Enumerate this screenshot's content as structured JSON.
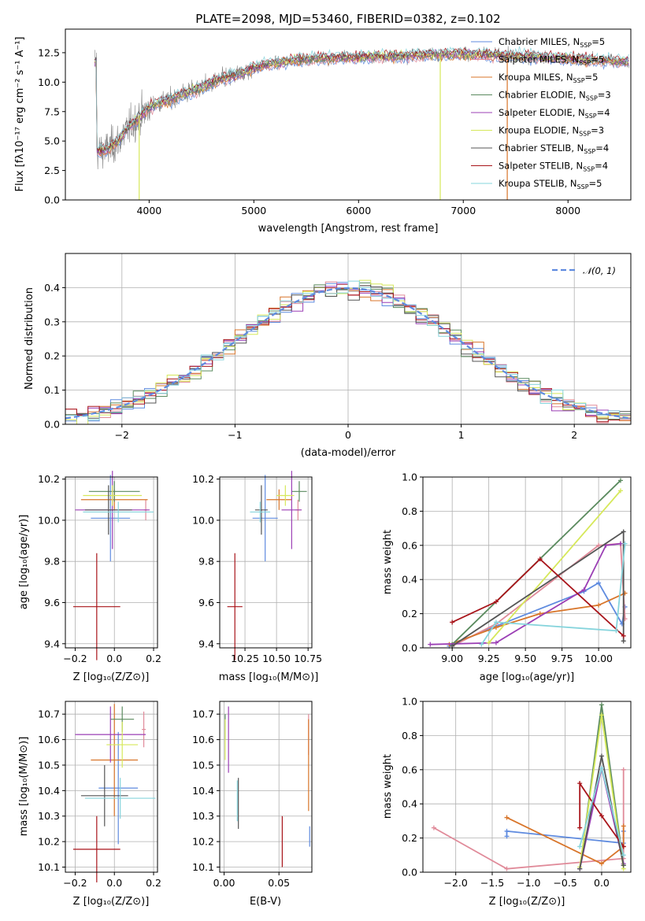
{
  "colors": {
    "Chabrier MILES": "#5f8bdf",
    "Salpeter MILES": "#e08a99",
    "Kroupa MILES": "#d8752a",
    "Chabrier ELODIE": "#5a8a5e",
    "Salpeter ELODIE": "#9b3fb5",
    "Kroupa ELODIE": "#d6e85a",
    "Chabrier STELIB": "#555555",
    "Salpeter STELIB": "#a8141a",
    "Kroupa STELIB": "#86d4dc"
  },
  "chart_data": [
    {
      "id": "spectrum",
      "type": "line",
      "title": "PLATE=2098, MJD=53460, FIBERID=0382, z=0.102",
      "xlabel": "wavelength [Angstrom, rest frame]",
      "ylabel": "Flux [fλ10⁻¹⁷ erg cm⁻² s⁻¹ A⁻¹]",
      "xlim": [
        3200,
        8600
      ],
      "ylim": [
        0,
        14.5
      ],
      "xticks": [
        "4000",
        "5000",
        "6000",
        "7000",
        "8000"
      ],
      "yticks": [
        "0.0",
        "2.5",
        "5.0",
        "7.5",
        "10.0",
        "12.5"
      ],
      "legend_position": "right",
      "legend": [
        {
          "text": "Chabrier MILES, N",
          "sub": "SSP",
          "tail": "=5",
          "series": "Chabrier MILES"
        },
        {
          "text": "Salpeter MILES, N",
          "sub": "SSP",
          "tail": "=5",
          "series": "Salpeter MILES"
        },
        {
          "text": "Kroupa MILES, N",
          "sub": "SSP",
          "tail": "=5",
          "series": "Kroupa MILES"
        },
        {
          "text": "Chabrier ELODIE, N",
          "sub": "SSP",
          "tail": "=3",
          "series": "Chabrier ELODIE"
        },
        {
          "text": "Salpeter ELODIE, N",
          "sub": "SSP",
          "tail": "=4",
          "series": "Salpeter ELODIE"
        },
        {
          "text": "Kroupa ELODIE, N",
          "sub": "SSP",
          "tail": "=3",
          "series": "Kroupa ELODIE"
        },
        {
          "text": "Chabrier STELIB, N",
          "sub": "SSP",
          "tail": "=4",
          "series": "Chabrier STELIB"
        },
        {
          "text": "Salpeter STELIB, N",
          "sub": "SSP",
          "tail": "=4",
          "series": "Salpeter STELIB"
        },
        {
          "text": "Kroupa STELIB, N",
          "sub": "SSP",
          "tail": "=5",
          "series": "Kroupa STELIB"
        }
      ],
      "data_series": {
        "name": "data",
        "color": "#808080"
      },
      "continuum": {
        "x": [
          3500,
          3600,
          3700,
          3800,
          3900,
          4000,
          4100,
          4200,
          4300,
          4400,
          4500,
          4600,
          4700,
          4800,
          4900,
          5000,
          5200,
          5400,
          5600,
          5800,
          6000,
          6200,
          6400,
          6600,
          6800,
          7000,
          7200,
          7400,
          7600,
          7800,
          8000,
          8200,
          8400,
          8600
        ],
        "y": [
          4.1,
          4.3,
          4.9,
          6.1,
          7.0,
          7.8,
          8.3,
          8.5,
          8.9,
          9.2,
          9.5,
          9.9,
          10.3,
          10.5,
          10.8,
          11.2,
          11.6,
          11.9,
          12.0,
          12.1,
          12.1,
          12.2,
          12.2,
          12.3,
          12.4,
          12.4,
          12.3,
          12.3,
          12.2,
          12.1,
          12.0,
          11.9,
          11.8,
          11.7
        ]
      },
      "dropouts": [
        {
          "series": "Kroupa ELODIE",
          "x": 3905
        },
        {
          "series": "Kroupa ELODIE",
          "x": 6780
        },
        {
          "series": "Kroupa MILES",
          "x": 7420
        }
      ]
    },
    {
      "id": "residuals",
      "type": "step",
      "xlabel": "(data-model)/error",
      "ylabel": "Normed distribution",
      "xlim": [
        -2.5,
        2.5
      ],
      "ylim": [
        0,
        0.5
      ],
      "xticks": [
        "−2",
        "−1",
        "0",
        "1",
        "2"
      ],
      "yticks": [
        "0.0",
        "0.1",
        "0.2",
        "0.3",
        "0.4"
      ],
      "legend_position": "top-right",
      "legend": [
        {
          "text": "𝒩(0, 1)",
          "color": "#5f8bdf",
          "dashed": true
        }
      ],
      "bin_width": 0.1
    },
    {
      "id": "age-vs-Z",
      "type": "errorbar",
      "xlabel": "Z [log₁₀(Z/Z⊙)]",
      "ylabel": "age  [log₁₀(age/yr)]",
      "xlim": [
        -0.25,
        0.22
      ],
      "ylim": [
        9.38,
        10.21
      ],
      "xticks": [
        "−0.2",
        "0.0",
        "0.2"
      ],
      "yticks": [
        "9.4",
        "9.6",
        "9.8",
        "10.0",
        "10.2"
      ],
      "points": [
        {
          "series": "Chabrier MILES",
          "x": -0.02,
          "y": 10.01,
          "xerr": 0.1,
          "yerr": 0.21
        },
        {
          "series": "Salpeter MILES",
          "x": 0.16,
          "y": 10.05,
          "xerr": 0.01,
          "yerr": 0.05
        },
        {
          "series": "Kroupa MILES",
          "x": 0.0,
          "y": 10.1,
          "xerr": 0.17,
          "yerr": 0.05
        },
        {
          "series": "Chabrier ELODIE",
          "x": 0.0,
          "y": 10.14,
          "xerr": 0.13,
          "yerr": 0.05
        },
        {
          "series": "Salpeter ELODIE",
          "x": -0.01,
          "y": 10.05,
          "xerr": 0.19,
          "yerr": 0.19
        },
        {
          "series": "Kroupa ELODIE",
          "x": -0.01,
          "y": 10.12,
          "xerr": 0.15,
          "yerr": 0.05
        },
        {
          "series": "Chabrier STELIB",
          "x": -0.03,
          "y": 10.05,
          "xerr": 0.12,
          "yerr": 0.12
        },
        {
          "series": "Salpeter STELIB",
          "x": -0.09,
          "y": 9.58,
          "xerr": 0.12,
          "yerr": 0.26
        },
        {
          "series": "Kroupa STELIB",
          "x": 0.02,
          "y": 10.04,
          "xerr": 0.18,
          "yerr": 0.05
        }
      ]
    },
    {
      "id": "age-vs-mass",
      "type": "errorbar",
      "xlabel": "mass [log₁₀(M/M⊙)]",
      "ylabel": "",
      "xlim": [
        10.05,
        10.78
      ],
      "ylim": [
        9.38,
        10.21
      ],
      "xticks": [
        "10.25",
        "10.50",
        "10.75"
      ],
      "yticks": [
        "9.4",
        "9.6",
        "9.8",
        "10.0",
        "10.2"
      ],
      "points": [
        {
          "series": "Chabrier MILES",
          "x": 10.41,
          "y": 10.01,
          "xerr": 0.1,
          "yerr": 0.21
        },
        {
          "series": "Salpeter MILES",
          "x": 10.67,
          "y": 10.05,
          "xerr": 0.02,
          "yerr": 0.05
        },
        {
          "series": "Kroupa MILES",
          "x": 10.52,
          "y": 10.1,
          "xerr": 0.1,
          "yerr": 0.05
        },
        {
          "series": "Chabrier ELODIE",
          "x": 10.68,
          "y": 10.14,
          "xerr": 0.06,
          "yerr": 0.05
        },
        {
          "series": "Salpeter ELODIE",
          "x": 10.62,
          "y": 10.05,
          "xerr": 0.08,
          "yerr": 0.19
        },
        {
          "series": "Kroupa ELODIE",
          "x": 10.57,
          "y": 10.12,
          "xerr": 0.07,
          "yerr": 0.05
        },
        {
          "series": "Chabrier STELIB",
          "x": 10.38,
          "y": 10.05,
          "xerr": 0.05,
          "yerr": 0.12
        },
        {
          "series": "Salpeter STELIB",
          "x": 10.17,
          "y": 9.58,
          "xerr": 0.06,
          "yerr": 0.26
        },
        {
          "series": "Kroupa STELIB",
          "x": 10.37,
          "y": 10.04,
          "xerr": 0.08,
          "yerr": 0.05
        }
      ]
    },
    {
      "id": "weight-vs-age",
      "type": "line",
      "xlabel": "age  [log₁₀(age/yr)]",
      "ylabel": "mass weight",
      "xlim": [
        8.8,
        10.22
      ],
      "ylim": [
        0,
        1.0
      ],
      "xticks": [
        "9.00",
        "9.25",
        "9.50",
        "9.75",
        "10.00"
      ],
      "yticks": [
        "0.0",
        "0.2",
        "0.4",
        "0.6",
        "0.8",
        "1.0"
      ],
      "series": [
        {
          "series": "Chabrier MILES",
          "x": [
            8.98,
            9.25,
            9.9,
            10.0,
            10.16,
            10.18
          ],
          "y": [
            0.01,
            0.11,
            0.33,
            0.38,
            0.14,
            0.24
          ]
        },
        {
          "series": "Salpeter MILES",
          "x": [
            9.0,
            9.3,
            10.0,
            10.15,
            10.18
          ],
          "y": [
            0.01,
            0.14,
            0.6,
            0.61,
            0.17
          ]
        },
        {
          "series": "Kroupa MILES",
          "x": [
            8.98,
            9.3,
            9.6,
            10.0,
            10.18
          ],
          "y": [
            0.02,
            0.12,
            0.2,
            0.25,
            0.32
          ]
        },
        {
          "series": "Chabrier ELODIE",
          "x": [
            9.0,
            10.15
          ],
          "y": [
            0.02,
            0.98
          ]
        },
        {
          "series": "Salpeter ELODIE",
          "x": [
            8.85,
            9.3,
            9.9,
            10.05,
            10.15
          ],
          "y": [
            0.02,
            0.03,
            0.34,
            0.6,
            0.61
          ]
        },
        {
          "series": "Kroupa ELODIE",
          "x": [
            9.25,
            10.15
          ],
          "y": [
            0.03,
            0.92
          ]
        },
        {
          "series": "Chabrier STELIB",
          "x": [
            9.0,
            10.17,
            10.17
          ],
          "y": [
            0.01,
            0.68,
            0.04
          ]
        },
        {
          "series": "Salpeter STELIB",
          "x": [
            9.0,
            9.3,
            9.6,
            10.17
          ],
          "y": [
            0.15,
            0.27,
            0.52,
            0.07
          ]
        },
        {
          "series": "Kroupa STELIB",
          "x": [
            9.2,
            9.3,
            10.12,
            10.18
          ],
          "y": [
            0.02,
            0.15,
            0.1,
            0.61
          ]
        }
      ]
    },
    {
      "id": "mass-vs-Z",
      "type": "errorbar",
      "xlabel": "Z [log₁₀(Z/Z⊙)]",
      "ylabel": "mass [log₁₀(M/M⊙)]",
      "xlim": [
        -0.25,
        0.22
      ],
      "ylim": [
        10.08,
        10.75
      ],
      "xticks": [
        "−0.2",
        "0.0",
        "0.2"
      ],
      "yticks": [
        "10.1",
        "10.2",
        "10.3",
        "10.4",
        "10.5",
        "10.6",
        "10.7"
      ],
      "points": [
        {
          "series": "Chabrier MILES",
          "x": 0.02,
          "y": 10.41,
          "xerr": 0.1,
          "yerr": 0.22
        },
        {
          "series": "Salpeter MILES",
          "x": 0.15,
          "y": 10.64,
          "xerr": 0.01,
          "yerr": 0.07
        },
        {
          "series": "Kroupa MILES",
          "x": 0.0,
          "y": 10.52,
          "xerr": 0.12,
          "yerr": 0.22
        },
        {
          "series": "Chabrier ELODIE",
          "x": 0.04,
          "y": 10.68,
          "xerr": 0.06,
          "yerr": 0.05
        },
        {
          "series": "Salpeter ELODIE",
          "x": -0.02,
          "y": 10.62,
          "xerr": 0.18,
          "yerr": 0.11
        },
        {
          "series": "Kroupa ELODIE",
          "x": 0.04,
          "y": 10.58,
          "xerr": 0.08,
          "yerr": 0.09
        },
        {
          "series": "Chabrier STELIB",
          "x": -0.05,
          "y": 10.38,
          "xerr": 0.12,
          "yerr": 0.12
        },
        {
          "series": "Salpeter STELIB",
          "x": -0.09,
          "y": 10.17,
          "xerr": 0.12,
          "yerr": 0.13
        },
        {
          "series": "Kroupa STELIB",
          "x": 0.03,
          "y": 10.37,
          "xerr": 0.18,
          "yerr": 0.08
        }
      ]
    },
    {
      "id": "mass-vs-EBV",
      "type": "errorbar",
      "xlabel": "E(B-V)",
      "ylabel": "",
      "xlim": [
        -0.004,
        0.08
      ],
      "ylim": [
        10.08,
        10.75
      ],
      "xticks": [
        "0.00",
        "0.05"
      ],
      "yticks": [
        "10.1",
        "10.2",
        "10.3",
        "10.4",
        "10.5",
        "10.6",
        "10.7"
      ],
      "points": [
        {
          "series": "Chabrier MILES",
          "x": 0.078,
          "y": 10.22,
          "xerr": 0,
          "yerr": 0.04
        },
        {
          "series": "Salpeter MILES",
          "x": 0.077,
          "y": 10.62,
          "xerr": 0,
          "yerr": 0.08
        },
        {
          "series": "Kroupa MILES",
          "x": 0.077,
          "y": 10.5,
          "xerr": 0,
          "yerr": 0.18
        },
        {
          "series": "Chabrier ELODIE",
          "x": 0.001,
          "y": 10.65,
          "xerr": 0,
          "yerr": 0.05
        },
        {
          "series": "Salpeter ELODIE",
          "x": 0.004,
          "y": 10.6,
          "xerr": 0,
          "yerr": 0.13
        },
        {
          "series": "Kroupa ELODIE",
          "x": 0.001,
          "y": 10.6,
          "xerr": 0,
          "yerr": 0.08
        },
        {
          "series": "Chabrier STELIB",
          "x": 0.013,
          "y": 10.35,
          "xerr": 0,
          "yerr": 0.1
        },
        {
          "series": "Salpeter STELIB",
          "x": 0.053,
          "y": 10.2,
          "xerr": 0,
          "yerr": 0.1
        },
        {
          "series": "Kroupa STELIB",
          "x": 0.012,
          "y": 10.36,
          "xerr": 0,
          "yerr": 0.08
        }
      ]
    },
    {
      "id": "weight-vs-Z",
      "type": "line",
      "xlabel": "Z [log₁₀(Z/Z⊙)]",
      "ylabel": "mass weight",
      "xlim": [
        -2.45,
        0.4
      ],
      "ylim": [
        0,
        1.0
      ],
      "xticks": [
        "−2.0",
        "−1.5",
        "−1.0",
        "−0.5",
        "0.0"
      ],
      "yticks": [
        "0.0",
        "0.2",
        "0.4",
        "0.6",
        "0.8",
        "1.0"
      ],
      "series": [
        {
          "series": "Chabrier MILES",
          "x": [
            -1.3,
            -1.3,
            0.3,
            0.3
          ],
          "y": [
            0.21,
            0.24,
            0.17,
            0.24
          ]
        },
        {
          "series": "Salpeter MILES",
          "x": [
            -2.3,
            -1.3,
            0.3,
            0.3
          ],
          "y": [
            0.26,
            0.02,
            0.08,
            0.6
          ]
        },
        {
          "series": "Kroupa MILES",
          "x": [
            -1.3,
            0.0,
            0.3,
            0.3
          ],
          "y": [
            0.32,
            0.05,
            0.15,
            0.27
          ]
        },
        {
          "series": "Chabrier ELODIE",
          "x": [
            -0.3,
            0.0,
            0.3
          ],
          "y": [
            0.02,
            0.98,
            0.04
          ]
        },
        {
          "series": "Salpeter ELODIE",
          "x": [
            -0.3,
            0.0,
            0.3
          ],
          "y": [
            0.02,
            0.61,
            0.05
          ]
        },
        {
          "series": "Kroupa ELODIE",
          "x": [
            -0.3,
            0.0,
            0.3
          ],
          "y": [
            0.03,
            0.92,
            0.02
          ]
        },
        {
          "series": "Chabrier STELIB",
          "x": [
            -0.3,
            0.0,
            0.3
          ],
          "y": [
            0.02,
            0.68,
            0.04
          ]
        },
        {
          "series": "Salpeter STELIB",
          "x": [
            -0.3,
            -0.3,
            0.0,
            0.3
          ],
          "y": [
            0.26,
            0.52,
            0.33,
            0.15
          ]
        },
        {
          "series": "Kroupa STELIB",
          "x": [
            -0.3,
            0.0,
            0.3
          ],
          "y": [
            0.15,
            0.61,
            0.1
          ]
        }
      ]
    }
  ]
}
